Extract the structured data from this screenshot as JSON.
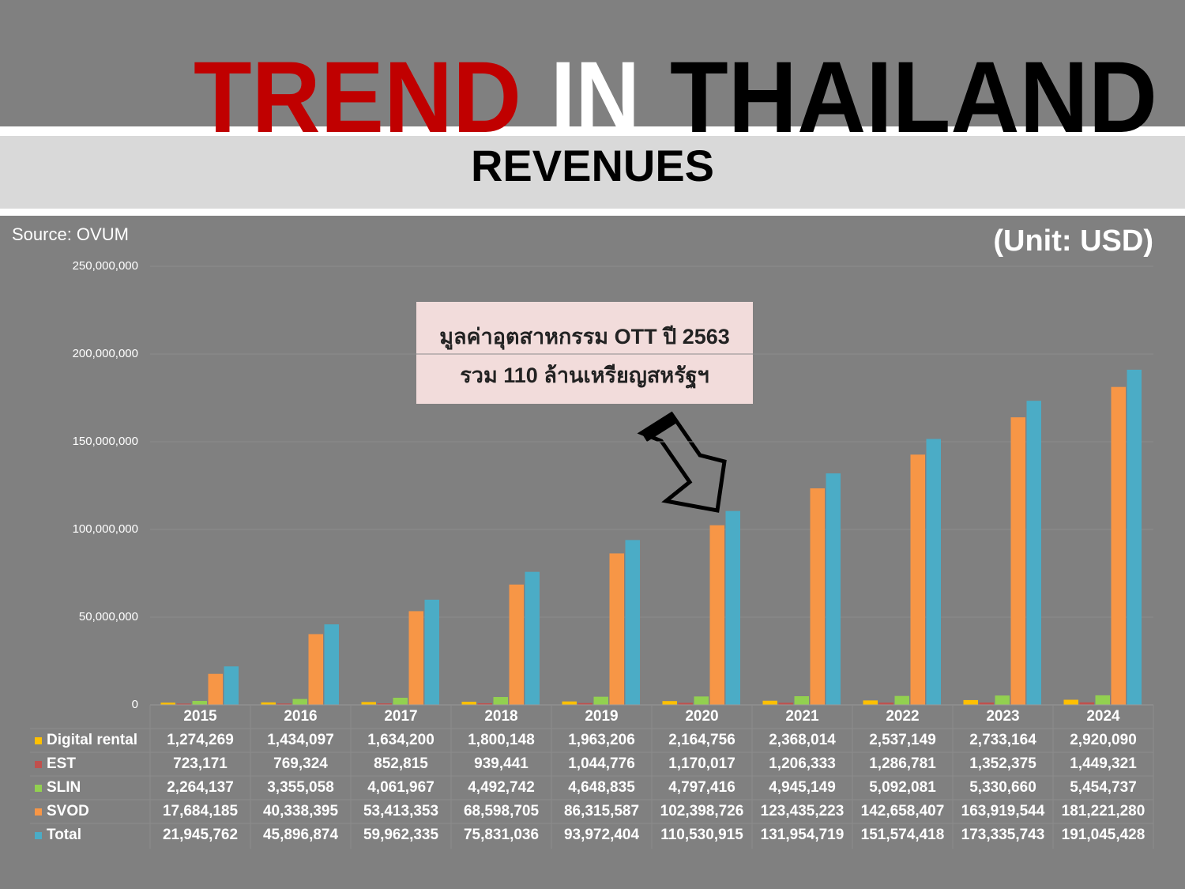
{
  "header": {
    "title": [
      "TREND",
      "IN",
      "THAILAND"
    ],
    "subtitle": "REVENUES"
  },
  "chart_data": {
    "type": "bar",
    "source": "Source: OVUM",
    "unit": "(Unit: USD)",
    "annotation": [
      "มูลค่าอุตสาหกรรม OTT ปี 2563",
      "รวม 110 ล้านเหรียญสหรัฐฯ"
    ],
    "categories": [
      "2015",
      "2016",
      "2017",
      "2018",
      "2019",
      "2020",
      "2021",
      "2022",
      "2023",
      "2024"
    ],
    "series": [
      {
        "name": "Digital rental",
        "color": "#ffc000",
        "values": [
          1274269,
          1434097,
          1634200,
          1800148,
          1963206,
          2164756,
          2368014,
          2537149,
          2733164,
          2920090
        ],
        "value_labels": [
          "1,274,269",
          "1,434,097",
          "1,634,200",
          "1,800,148",
          "1,963,206",
          "2,164,756",
          "2,368,014",
          "2,537,149",
          "2,733,164",
          "2,920,090"
        ]
      },
      {
        "name": "EST",
        "color": "#c0504d",
        "values": [
          723171,
          769324,
          852815,
          939441,
          1044776,
          1170017,
          1206333,
          1286781,
          1352375,
          1449321
        ],
        "value_labels": [
          "723,171",
          "769,324",
          "852,815",
          "939,441",
          "1,044,776",
          "1,170,017",
          "1,206,333",
          "1,286,781",
          "1,352,375",
          "1,449,321"
        ]
      },
      {
        "name": "SLIN",
        "color": "#92d050",
        "values": [
          2264137,
          3355058,
          4061967,
          4492742,
          4648835,
          4797416,
          4945149,
          5092081,
          5330660,
          5454737
        ],
        "value_labels": [
          "2,264,137",
          "3,355,058",
          "4,061,967",
          "4,492,742",
          "4,648,835",
          "4,797,416",
          "4,945,149",
          "5,092,081",
          "5,330,660",
          "5,454,737"
        ]
      },
      {
        "name": "SVOD",
        "color": "#f79646",
        "values": [
          17684185,
          40338395,
          53413353,
          68598705,
          86315587,
          102398726,
          123435223,
          142658407,
          163919544,
          181221280
        ],
        "value_labels": [
          "17,684,185",
          "40,338,395",
          "53,413,353",
          "68,598,705",
          "86,315,587",
          "102,398,726",
          "123,435,223",
          "142,658,407",
          "163,919,544",
          "181,221,280"
        ]
      },
      {
        "name": "Total",
        "color": "#4bacc6",
        "values": [
          21945762,
          45896874,
          59962335,
          75831036,
          93972404,
          110530915,
          131954719,
          151574418,
          173335743,
          191045428
        ],
        "value_labels": [
          "21,945,762",
          "45,896,874",
          "59,962,335",
          "75,831,036",
          "93,972,404",
          "110,530,915",
          "131,954,719",
          "151,574,418",
          "173,335,743",
          "191,045,428"
        ]
      }
    ],
    "ylim": [
      0,
      250000000
    ],
    "yticks": [
      0,
      {
        "value": 50000000,
        "label": "50,000,000"
      },
      {
        "value": 100000000,
        "label": "100,000,000"
      },
      {
        "value": 150000000,
        "label": "150,000,000"
      },
      {
        "value": 200000000,
        "label": "200,000,000"
      },
      {
        "value": 250000000,
        "label": "250,000,000"
      }
    ],
    "grid": true
  }
}
